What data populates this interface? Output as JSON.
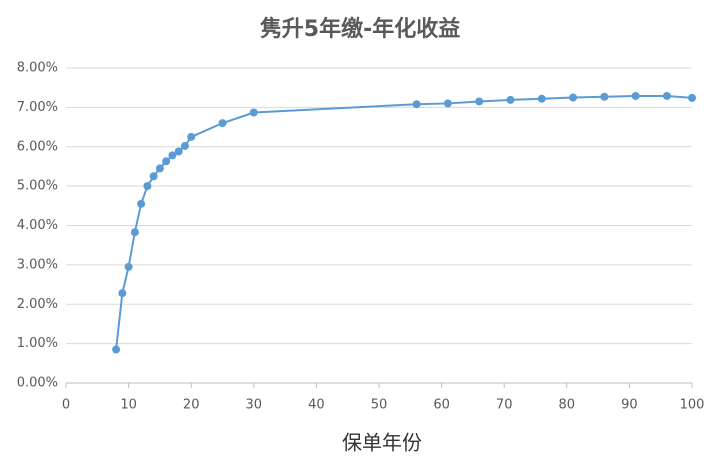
{
  "chart_data": {
    "type": "line",
    "title": "隽升5年缴-年化收益",
    "x_label": "保单年份",
    "x": [
      8,
      9,
      10,
      11,
      12,
      13,
      14,
      15,
      16,
      17,
      18,
      19,
      20,
      25,
      30,
      56,
      61,
      66,
      71,
      76,
      81,
      86,
      91,
      96,
      100
    ],
    "series": [
      {
        "color": "#5b9bd5",
        "values": [
          0.85,
          2.28,
          2.95,
          3.83,
          4.55,
          5.0,
          5.25,
          5.45,
          5.63,
          5.78,
          5.88,
          6.02,
          6.25,
          6.6,
          6.87,
          7.08,
          7.1,
          7.15,
          7.19,
          7.22,
          7.25,
          7.27,
          7.29,
          7.29,
          7.24
        ]
      }
    ],
    "xlim": [
      0,
      100
    ],
    "xticks": [
      0,
      10,
      20,
      30,
      40,
      50,
      60,
      70,
      80,
      90,
      100
    ],
    "ylim": [
      0,
      8
    ],
    "yticks": [
      {
        "value": 0,
        "label": "0.00%"
      },
      {
        "value": 1,
        "label": "1.00%"
      },
      {
        "value": 2,
        "label": "2.00%"
      },
      {
        "value": 3,
        "label": "3.00%"
      },
      {
        "value": 4,
        "label": "4.00%"
      },
      {
        "value": 5,
        "label": "5.00%"
      },
      {
        "value": 6,
        "label": "6.00%"
      },
      {
        "value": 7,
        "label": "7.00%"
      },
      {
        "value": 8,
        "label": "8.00%"
      }
    ],
    "grid": true
  }
}
